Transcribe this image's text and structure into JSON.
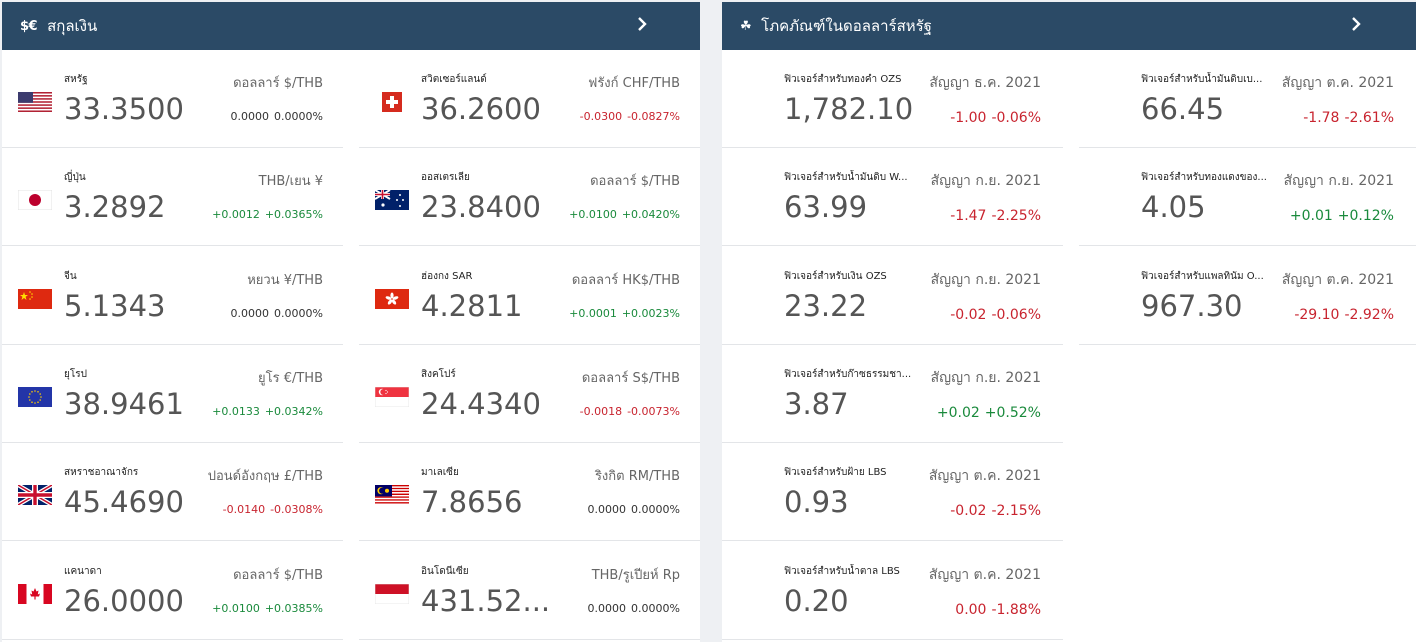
{
  "currency_panel": {
    "icon_text": "$€",
    "title": "สกุลเงิน",
    "items": [
      {
        "name": "สหรัฐ",
        "value": "33.3500",
        "unit": "ดอลลาร์ $/THB",
        "chg": "0.0000",
        "pct": "0.0000%",
        "dir": "neu",
        "flag": "us"
      },
      {
        "name": "สวิตเซอร์แลนด์",
        "value": "36.2600",
        "unit": "ฟรังก์ CHF/THB",
        "chg": "-0.0300",
        "pct": "-0.0827%",
        "dir": "neg",
        "flag": "ch"
      },
      {
        "name": "ญี่ปุ่น",
        "value": "3.2892",
        "unit": "THB/เยน ¥",
        "chg": "+0.0012",
        "pct": "+0.0365%",
        "dir": "pos",
        "flag": "jp"
      },
      {
        "name": "ออสเตรเลีย",
        "value": "23.8400",
        "unit": "ดอลลาร์ $/THB",
        "chg": "+0.0100",
        "pct": "+0.0420%",
        "dir": "pos",
        "flag": "au"
      },
      {
        "name": "จีน",
        "value": "5.1343",
        "unit": "หยวน ¥/THB",
        "chg": "0.0000",
        "pct": "0.0000%",
        "dir": "neu",
        "flag": "cn"
      },
      {
        "name": "ฮ่องกง SAR",
        "value": "4.2811",
        "unit": "ดอลลาร์ HK$/THB",
        "chg": "+0.0001",
        "pct": "+0.0023%",
        "dir": "pos",
        "flag": "hk"
      },
      {
        "name": "ยุโรป",
        "value": "38.9461",
        "unit": "ยูโร €/THB",
        "chg": "+0.0133",
        "pct": "+0.0342%",
        "dir": "pos",
        "flag": "eu"
      },
      {
        "name": "สิงคโปร์",
        "value": "24.4340",
        "unit": "ดอลลาร์ S$/THB",
        "chg": "-0.0018",
        "pct": "-0.0073%",
        "dir": "neg",
        "flag": "sg"
      },
      {
        "name": "สหราชอาณาจักร",
        "value": "45.4690",
        "unit": "ปอนด์อังกฤษ £/THB",
        "chg": "-0.0140",
        "pct": "-0.0308%",
        "dir": "neg",
        "flag": "gb"
      },
      {
        "name": "มาเลเซีย",
        "value": "7.8656",
        "unit": "ริงกิต RM/THB",
        "chg": "0.0000",
        "pct": "0.0000%",
        "dir": "neu",
        "flag": "my"
      },
      {
        "name": "แคนาดา",
        "value": "26.0000",
        "unit": "ดอลลาร์ $/THB",
        "chg": "+0.0100",
        "pct": "+0.0385%",
        "dir": "pos",
        "flag": "ca"
      },
      {
        "name": "อินโดนีเซีย",
        "value": "431.52...",
        "unit": "THB/รูเปียห์ Rp",
        "chg": "0.0000",
        "pct": "0.0000%",
        "dir": "neu",
        "flag": "id"
      }
    ]
  },
  "commodity_panel": {
    "icon_text": "☘",
    "title": "โภคภัณฑ์ในดอลลาร์สหรัฐ",
    "items": [
      {
        "name": "ฟิวเจอร์สำหรับทองคำ OZS",
        "value": "1,782.10",
        "contract": "สัญญา ธ.ค. 2021",
        "chg": "-1.00",
        "pct": "-0.06%",
        "dir": "neg"
      },
      {
        "name": "ฟิวเจอร์สำหรับน้ำมันดิบเบ...",
        "value": "66.45",
        "contract": "สัญญา ต.ค. 2021",
        "chg": "-1.78",
        "pct": "-2.61%",
        "dir": "neg"
      },
      {
        "name": "ฟิวเจอร์สำหรับน้ำมันดิบ W...",
        "value": "63.99",
        "contract": "สัญญา ก.ย. 2021",
        "chg": "-1.47",
        "pct": "-2.25%",
        "dir": "neg"
      },
      {
        "name": "ฟิวเจอร์สำหรับทองแดงของ...",
        "value": "4.05",
        "contract": "สัญญา ก.ย. 2021",
        "chg": "+0.01",
        "pct": "+0.12%",
        "dir": "pos"
      },
      {
        "name": "ฟิวเจอร์สำหรับเงิน OZS",
        "value": "23.22",
        "contract": "สัญญา ก.ย. 2021",
        "chg": "-0.02",
        "pct": "-0.06%",
        "dir": "neg"
      },
      {
        "name": "ฟิวเจอร์สำหรับแพลทินัม O...",
        "value": "967.30",
        "contract": "สัญญา ต.ค. 2021",
        "chg": "-29.10",
        "pct": "-2.92%",
        "dir": "neg"
      },
      {
        "name": "ฟิวเจอร์สำหรับก๊าซธรรมชา...",
        "value": "3.87",
        "contract": "สัญญา ก.ย. 2021",
        "chg": "+0.02",
        "pct": "+0.52%",
        "dir": "pos"
      },
      {
        "name": "ฟิวเจอร์สำหรับฝ้าย LBS",
        "value": "0.93",
        "contract": "สัญญา ต.ค. 2021",
        "chg": "-0.02",
        "pct": "-2.15%",
        "dir": "neg"
      },
      {
        "name": "ฟิวเจอร์สำหรับน้ำตาล LBS",
        "value": "0.20",
        "contract": "สัญญา ต.ค. 2021",
        "chg": "0.00",
        "pct": "-1.88%",
        "dir": "neg"
      }
    ]
  },
  "colors": {
    "header_bg": "#2b4a66",
    "positive": "#1a8a3c",
    "negative": "#c8242f"
  }
}
